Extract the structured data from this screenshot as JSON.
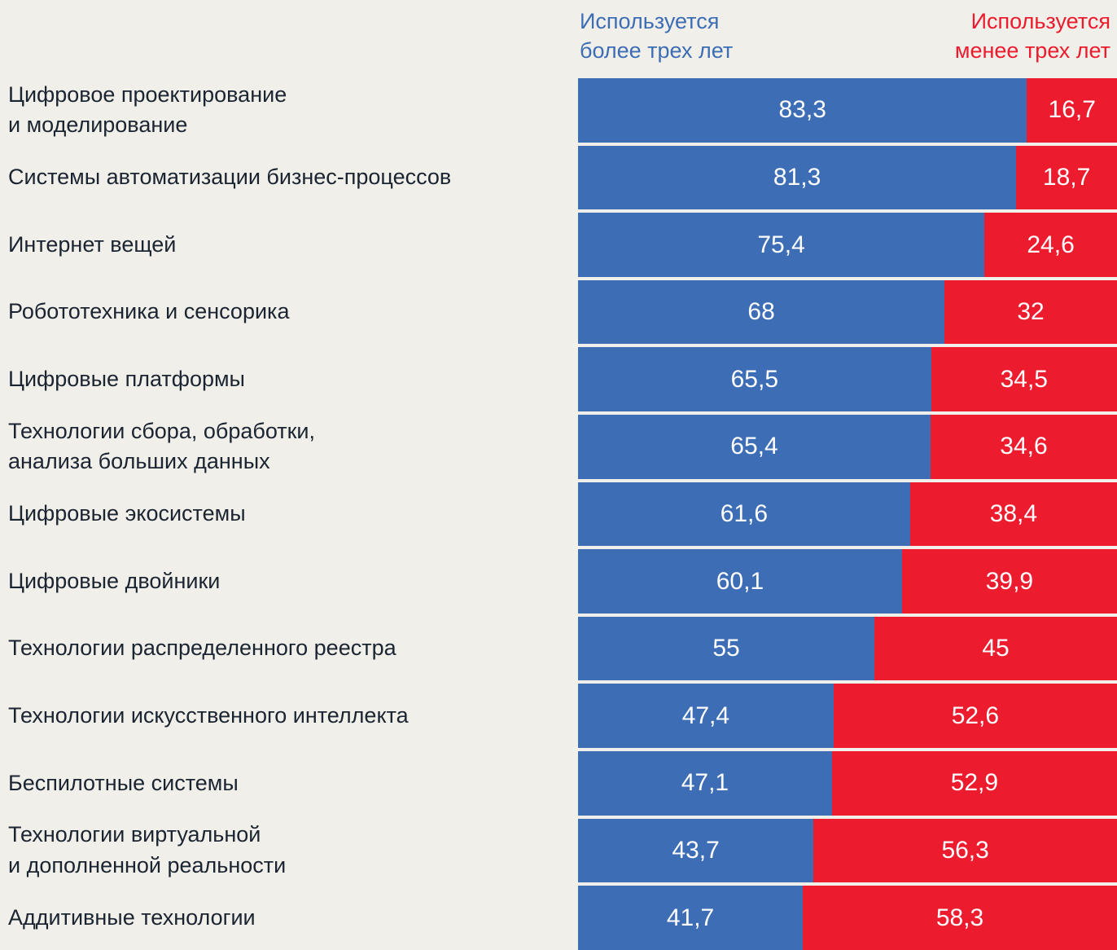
{
  "page": {
    "background": "#f0efe9",
    "text_color": "#1b2431"
  },
  "legend": {
    "more": {
      "label": "Используется\nболее трех лет",
      "color": "#3d6db5"
    },
    "less": {
      "label": "Используется\nменее трех лет",
      "color": "#ec1b2d"
    }
  },
  "chart_data": {
    "type": "bar",
    "orientation": "horizontal",
    "stacked": true,
    "unit": "percent",
    "xlim": [
      0,
      100
    ],
    "legend_position": "top",
    "grid": false,
    "categories": [
      "Цифровое проектирование\nи моделирование",
      "Системы автоматизации бизнес-процессов",
      "Интернет вещей",
      "Робототехника и сенсорика",
      "Цифровые платформы",
      "Технологии сбора, обработки,\nанализа больших данных",
      "Цифровые экосистемы",
      "Цифровые двойники",
      "Технологии распределенного реестра",
      "Технологии искусственного интеллекта",
      "Беспилотные системы",
      "Технологии виртуальной\nи дополненной реальности",
      "Аддитивные технологии"
    ],
    "series": [
      {
        "name": "Используется более трех лет",
        "color": "#3d6db5",
        "values": [
          83.3,
          81.3,
          75.4,
          68,
          65.5,
          65.4,
          61.6,
          60.1,
          55,
          47.4,
          47.1,
          43.7,
          41.7
        ],
        "display": [
          "83,3",
          "81,3",
          "75,4",
          "68",
          "65,5",
          "65,4",
          "61,6",
          "60,1",
          "55",
          "47,4",
          "47,1",
          "43,7",
          "41,7"
        ]
      },
      {
        "name": "Используется менее трех лет",
        "color": "#ec1b2d",
        "values": [
          16.7,
          18.7,
          24.6,
          32,
          34.5,
          34.6,
          38.4,
          39.9,
          45,
          52.6,
          52.9,
          56.3,
          58.3
        ],
        "display": [
          "16,7",
          "18,7",
          "24,6",
          "32",
          "34,5",
          "34,6",
          "38,4",
          "39,9",
          "45",
          "52,6",
          "52,9",
          "56,3",
          "58,3"
        ]
      }
    ]
  }
}
